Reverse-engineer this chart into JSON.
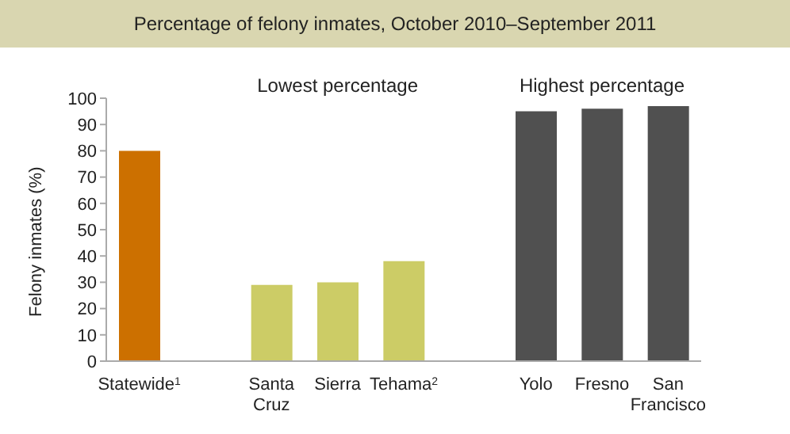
{
  "chart_data": {
    "type": "bar",
    "title": "Percentage of felony inmates, October 2010–September 2011",
    "ylabel": "Felony inmates (%)",
    "categories": [
      "Statewide$^{1}$",
      null,
      "Santa Cruz",
      "Sierra",
      "Tehama$^{2}$",
      null,
      "Yolo",
      "Fresno",
      "San Francisco"
    ],
    "values": [
      80,
      null,
      29,
      30,
      38,
      null,
      95,
      96,
      97
    ],
    "colors": [
      "#cc7000",
      null,
      "#cccc66",
      "#cccc66",
      "#cccc66",
      null,
      "#505050",
      "#505050",
      "#505050"
    ],
    "ylim": [
      0,
      100
    ],
    "yticks": [
      0,
      10,
      20,
      30,
      40,
      50,
      60,
      70,
      80,
      90,
      100
    ],
    "annotations": [
      "Lowest percentage",
      "Highest percentage"
    ]
  }
}
